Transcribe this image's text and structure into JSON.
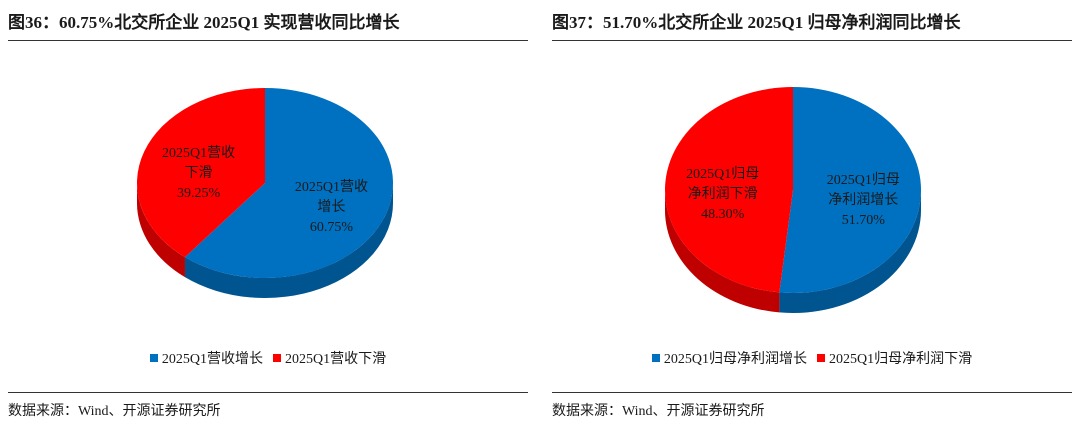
{
  "chart_data": [
    {
      "type": "pie",
      "title": "图36：60.75%北交所企业 2025Q1 实现营收同比增长",
      "categories": [
        "2025Q1营收增长",
        "2025Q1营收下滑"
      ],
      "values": [
        60.75,
        39.25
      ],
      "value_labels": [
        "60.75%",
        "39.25%"
      ],
      "colors": [
        "#0070c0",
        "#ff0000"
      ],
      "legend": "bottom",
      "source": "数据来源：Wind、开源证券研究所"
    },
    {
      "type": "pie",
      "title": "图37：51.70%北交所企业 2025Q1 归母净利润同比增长",
      "categories": [
        "2025Q1归母净利润增长",
        "2025Q1归母净利润下滑"
      ],
      "values": [
        51.7,
        48.3
      ],
      "value_labels": [
        "51.70%",
        "48.30%"
      ],
      "colors": [
        "#0070c0",
        "#ff0000"
      ],
      "legend": "bottom",
      "source": "数据来源：Wind、开源证券研究所"
    }
  ]
}
